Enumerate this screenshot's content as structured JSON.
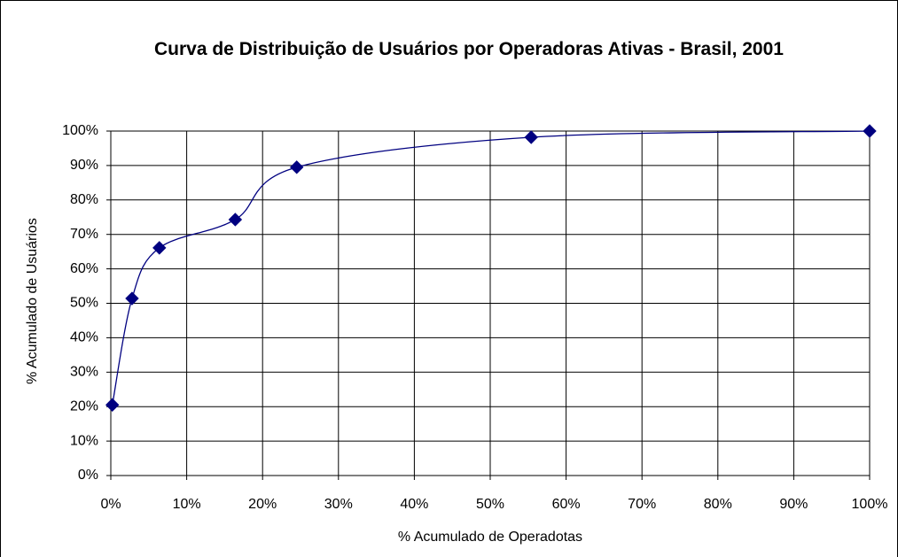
{
  "chart_data": {
    "type": "line",
    "title": "Curva de Distribuição de Usuários por Operadoras Ativas - Brasil, 2001",
    "x_label": "% Acumulado de Operadotas",
    "y_label": "% Acumulado de Usuários",
    "x": [
      0.2,
      2.8,
      6.4,
      16.4,
      24.5,
      55.4,
      100
    ],
    "series": [
      {
        "color": "#000080",
        "values": [
          20.5,
          51.4,
          66.1,
          74.3,
          89.5,
          98.2,
          100
        ]
      }
    ],
    "xlim": [
      0,
      100
    ],
    "ylim": [
      0,
      100
    ],
    "xticks": [
      {
        "value": 0,
        "label": "0%"
      },
      {
        "value": 10,
        "label": "10%"
      },
      {
        "value": 20,
        "label": "20%"
      },
      {
        "value": 30,
        "label": "30%"
      },
      {
        "value": 40,
        "label": "40%"
      },
      {
        "value": 50,
        "label": "50%"
      },
      {
        "value": 60,
        "label": "60%"
      },
      {
        "value": 70,
        "label": "70%"
      },
      {
        "value": 80,
        "label": "80%"
      },
      {
        "value": 90,
        "label": "90%"
      },
      {
        "value": 100,
        "label": "100%"
      }
    ],
    "yticks": [
      {
        "value": 0,
        "label": "0%"
      },
      {
        "value": 10,
        "label": "10%"
      },
      {
        "value": 20,
        "label": "20%"
      },
      {
        "value": 30,
        "label": "30%"
      },
      {
        "value": 40,
        "label": "40%"
      },
      {
        "value": 50,
        "label": "50%"
      },
      {
        "value": 60,
        "label": "60%"
      },
      {
        "value": 70,
        "label": "70%"
      },
      {
        "value": 80,
        "label": "80%"
      },
      {
        "value": 90,
        "label": "90%"
      },
      {
        "value": 100,
        "label": "100%"
      }
    ],
    "grid": true,
    "smooth": true
  }
}
